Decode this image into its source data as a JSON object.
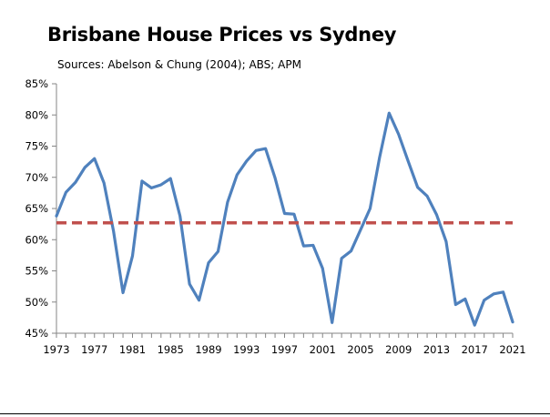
{
  "chart_data": {
    "type": "line",
    "title": "Brisbane House Prices vs Sydney",
    "subtitle": "Sources: Abelson & Chung (2004); ABS; APM",
    "xlabel": "",
    "ylabel": "",
    "x_tick_labels": [
      "1973",
      "1977",
      "1981",
      "1985",
      "1989",
      "1993",
      "1997",
      "2001",
      "2005",
      "2009",
      "2013",
      "2017",
      "2021"
    ],
    "y_tick_labels": [
      "45%",
      "50%",
      "55%",
      "60%",
      "65%",
      "70%",
      "75%",
      "80%",
      "85%"
    ],
    "xlim": [
      1973,
      2021
    ],
    "ylim": [
      45,
      85
    ],
    "grid": false,
    "legend": "none",
    "series": [
      {
        "color": "#4f81bd",
        "line_style": "solid",
        "x": [
          1973,
          1974,
          1975,
          1976,
          1977,
          1978,
          1979,
          1980,
          1981,
          1982,
          1983,
          1984,
          1985,
          1986,
          1987,
          1988,
          1989,
          1990,
          1991,
          1992,
          1993,
          1994,
          1995,
          1996,
          1997,
          1998,
          1999,
          2000,
          2001,
          2002,
          2003,
          2004,
          2005,
          2006,
          2007,
          2008,
          2009,
          2010,
          2011,
          2012,
          2013,
          2014,
          2015,
          2016,
          2017,
          2018,
          2019,
          2020,
          2021
        ],
        "values": [
          63.8,
          67.6,
          69.2,
          71.6,
          73.0,
          69.1,
          61.4,
          51.5,
          57.4,
          69.4,
          68.3,
          68.8,
          69.8,
          63.8,
          52.9,
          50.3,
          56.3,
          58.1,
          66.0,
          70.4,
          72.6,
          74.3,
          74.6,
          69.9,
          64.2,
          64.1,
          59.0,
          59.1,
          55.4,
          46.7,
          57.0,
          58.2,
          61.6,
          65.0,
          73.2,
          80.3,
          76.9,
          72.6,
          68.4,
          67.0,
          64.0,
          59.7,
          49.6,
          50.5,
          46.3,
          50.3,
          51.3,
          51.6,
          46.8
        ]
      },
      {
        "color": "#c0504d",
        "line_style": "dashed",
        "x": [
          1973,
          2021
        ],
        "values": [
          62.7,
          62.7
        ]
      }
    ]
  }
}
